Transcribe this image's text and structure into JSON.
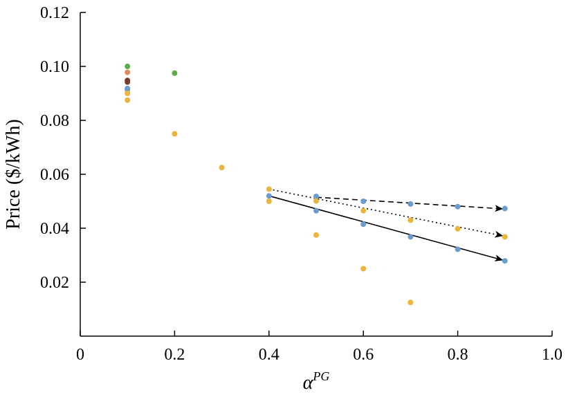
{
  "chart_data": {
    "type": "scatter",
    "xlabel": "α",
    "xlabel_sup": "PG",
    "ylabel": "Price ($/kWh)",
    "xlim": [
      0,
      1.0
    ],
    "ylim": [
      0,
      0.12
    ],
    "x_ticks": [
      0,
      0.2,
      0.4,
      0.6,
      0.8,
      1.0
    ],
    "x_tick_labels": [
      "0",
      "0.2",
      "0.4",
      "0.6",
      "0.8",
      "1.0"
    ],
    "y_ticks": [
      0.02,
      0.04,
      0.06,
      0.08,
      0.1,
      0.12
    ],
    "y_tick_labels": [
      "0.02",
      "0.04",
      "0.06",
      "0.08",
      "0.10",
      "0.12"
    ],
    "grid": false,
    "colors": {
      "yellow": "#EBB43A",
      "blue": "#6A9CCD",
      "green": "#5BAE47",
      "orange": "#E08A5C",
      "brown": "#7A3B2B"
    },
    "points": [
      {
        "x": 0.1,
        "y": 0.1,
        "color": "green"
      },
      {
        "x": 0.1,
        "y": 0.0978,
        "color": "orange"
      },
      {
        "x": 0.1,
        "y": 0.0948,
        "color": "brown"
      },
      {
        "x": 0.1,
        "y": 0.0942,
        "color": "brown"
      },
      {
        "x": 0.1,
        "y": 0.0918,
        "color": "blue"
      },
      {
        "x": 0.1,
        "y": 0.0913,
        "color": "blue"
      },
      {
        "x": 0.1,
        "y": 0.09,
        "color": "yellow"
      },
      {
        "x": 0.1,
        "y": 0.0875,
        "color": "yellow"
      },
      {
        "x": 0.2,
        "y": 0.0975,
        "color": "green"
      },
      {
        "x": 0.2,
        "y": 0.075,
        "color": "yellow"
      },
      {
        "x": 0.3,
        "y": 0.0625,
        "color": "yellow"
      },
      {
        "x": 0.4,
        "y": 0.0545,
        "color": "yellow"
      },
      {
        "x": 0.4,
        "y": 0.052,
        "color": "blue"
      },
      {
        "x": 0.4,
        "y": 0.05,
        "color": "yellow"
      },
      {
        "x": 0.5,
        "y": 0.0518,
        "color": "blue"
      },
      {
        "x": 0.5,
        "y": 0.0501,
        "color": "yellow"
      },
      {
        "x": 0.5,
        "y": 0.0465,
        "color": "blue"
      },
      {
        "x": 0.5,
        "y": 0.0375,
        "color": "yellow"
      },
      {
        "x": 0.6,
        "y": 0.05,
        "color": "blue"
      },
      {
        "x": 0.6,
        "y": 0.0465,
        "color": "yellow"
      },
      {
        "x": 0.6,
        "y": 0.0415,
        "color": "blue"
      },
      {
        "x": 0.6,
        "y": 0.025,
        "color": "yellow"
      },
      {
        "x": 0.7,
        "y": 0.049,
        "color": "blue"
      },
      {
        "x": 0.7,
        "y": 0.043,
        "color": "yellow"
      },
      {
        "x": 0.7,
        "y": 0.0368,
        "color": "blue"
      },
      {
        "x": 0.7,
        "y": 0.0125,
        "color": "yellow"
      },
      {
        "x": 0.8,
        "y": 0.048,
        "color": "blue"
      },
      {
        "x": 0.8,
        "y": 0.0398,
        "color": "yellow"
      },
      {
        "x": 0.8,
        "y": 0.0322,
        "color": "blue"
      },
      {
        "x": 0.9,
        "y": 0.0473,
        "color": "blue"
      },
      {
        "x": 0.9,
        "y": 0.0368,
        "color": "yellow"
      },
      {
        "x": 0.9,
        "y": 0.0279,
        "color": "blue"
      }
    ],
    "trend_arrows": [
      {
        "style": "dashed",
        "from": [
          0.5,
          0.0515
        ],
        "to": [
          0.895,
          0.0472
        ]
      },
      {
        "style": "dotted",
        "from": [
          0.4,
          0.0545
        ],
        "to": [
          0.895,
          0.0372
        ]
      },
      {
        "style": "solid",
        "from": [
          0.4,
          0.052
        ],
        "to": [
          0.895,
          0.0282
        ]
      }
    ]
  }
}
